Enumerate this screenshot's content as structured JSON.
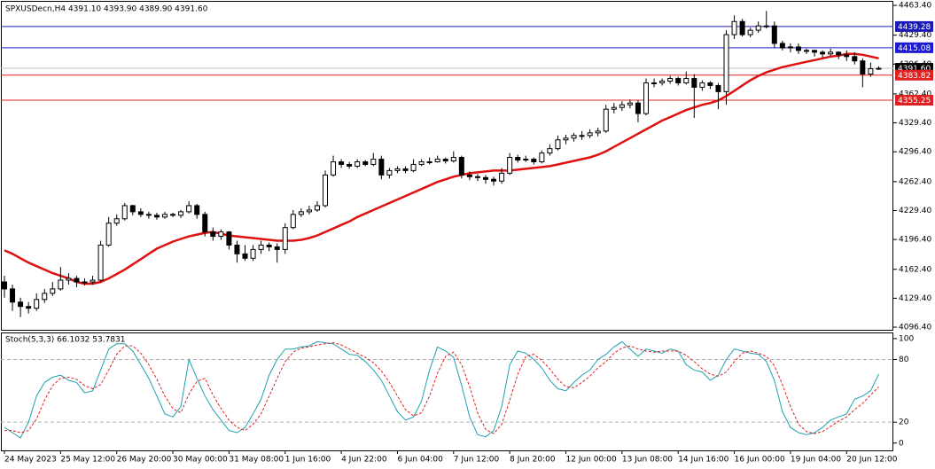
{
  "chart_data": [
    {
      "type": "candlestick",
      "title": "SPXUSDecn,H4  4391.10 4393.90 4389.90 4391.60",
      "ylim": [
        4093.4,
        4468.5
      ],
      "yticks": [
        {
          "value": 4463.4,
          "label": "4463.40"
        },
        {
          "value": 4429.4,
          "label": "4429.40"
        },
        {
          "value": 4396.4,
          "label": "4396.40"
        },
        {
          "value": 4362.4,
          "label": "4362.40"
        },
        {
          "value": 4329.4,
          "label": "4329.40"
        },
        {
          "value": 4296.4,
          "label": "4296.40"
        },
        {
          "value": 4262.4,
          "label": "4262.40"
        },
        {
          "value": 4229.4,
          "label": "4229.40"
        },
        {
          "value": 4196.4,
          "label": "4196.40"
        },
        {
          "value": 4162.4,
          "label": "4162.40"
        },
        {
          "value": 4129.4,
          "label": "4129.40"
        },
        {
          "value": 4096.4,
          "label": "4096.40"
        }
      ],
      "levels": [
        {
          "value": 4439.28,
          "label": "4439.28",
          "color": "#1a1ab8"
        },
        {
          "value": 4415.08,
          "label": "4415.08",
          "color": "#1a1ad0"
        },
        {
          "value": 4391.6,
          "label": "4391.60",
          "color": "#000000",
          "line_color": "#c0c0c0"
        },
        {
          "value": 4383.82,
          "label": "4383.82",
          "color": "#e02020"
        },
        {
          "value": 4355.25,
          "label": "4355.25",
          "color": "#e02020"
        }
      ],
      "categories": [
        "24 May 2023",
        null,
        null,
        null,
        null,
        null,
        null,
        "25 May 12:00",
        null,
        null,
        null,
        null,
        null,
        null,
        "26 May 20:00",
        null,
        null,
        null,
        null,
        null,
        null,
        "30 May 00:00",
        null,
        null,
        null,
        null,
        null,
        null,
        "31 May 08:00",
        null,
        null,
        null,
        null,
        null,
        null,
        "1 Jun 16:00",
        null,
        null,
        null,
        null,
        null,
        null,
        "4 Jun 22:00",
        null,
        null,
        null,
        null,
        null,
        null,
        "6 Jun 04:00",
        null,
        null,
        null,
        null,
        null,
        null,
        "7 Jun 12:00",
        null,
        null,
        null,
        null,
        null,
        null,
        "8 Jun 20:00",
        null,
        null,
        null,
        null,
        null,
        null,
        "12 Jun 00:00",
        null,
        null,
        null,
        null,
        null,
        null,
        "13 Jun 08:00",
        null,
        null,
        null,
        null,
        null,
        null,
        "14 Jun 16:00",
        null,
        null,
        null,
        null,
        null,
        null,
        "16 Jun 00:00",
        null,
        null,
        null,
        null,
        null,
        null,
        "19 Jun 04:00",
        null,
        null,
        null,
        null,
        null,
        null,
        "20 Jun 12:00",
        null,
        null,
        null,
        null
      ],
      "candles": [
        [
          4148,
          4155,
          4130,
          4140
        ],
        [
          4140,
          4145,
          4115,
          4125
        ],
        [
          4125,
          4130,
          4108,
          4120
        ],
        [
          4120,
          4125,
          4112,
          4118
        ],
        [
          4118,
          4135,
          4115,
          4128
        ],
        [
          4128,
          4140,
          4124,
          4135
        ],
        [
          4135,
          4148,
          4132,
          4140
        ],
        [
          4140,
          4165,
          4138,
          4150
        ],
        [
          4150,
          4158,
          4145,
          4152
        ],
        [
          4152,
          4155,
          4142,
          4148
        ],
        [
          4148,
          4152,
          4144,
          4148
        ],
        [
          4148,
          4155,
          4145,
          4150
        ],
        [
          4150,
          4195,
          4148,
          4190
        ],
        [
          4190,
          4222,
          4188,
          4215
        ],
        [
          4215,
          4225,
          4212,
          4220
        ],
        [
          4220,
          4238,
          4218,
          4235
        ],
        [
          4235,
          4236,
          4224,
          4228
        ],
        [
          4228,
          4232,
          4222,
          4225
        ],
        [
          4225,
          4228,
          4220,
          4224
        ],
        [
          4224,
          4227,
          4219,
          4222
        ],
        [
          4222,
          4228,
          4220,
          4225
        ],
        [
          4225,
          4227,
          4222,
          4224
        ],
        [
          4224,
          4230,
          4221,
          4228
        ],
        [
          4228,
          4240,
          4226,
          4235
        ],
        [
          4235,
          4237,
          4220,
          4225
        ],
        [
          4225,
          4228,
          4200,
          4205
        ],
        [
          4205,
          4210,
          4195,
          4200
        ],
        [
          4200,
          4208,
          4196,
          4205
        ],
        [
          4205,
          4206,
          4185,
          4190
        ],
        [
          4190,
          4195,
          4170,
          4180
        ],
        [
          4180,
          4190,
          4172,
          4175
        ],
        [
          4175,
          4190,
          4172,
          4185
        ],
        [
          4185,
          4195,
          4180,
          4190
        ],
        [
          4190,
          4193,
          4183,
          4188
        ],
        [
          4188,
          4192,
          4170,
          4185
        ],
        [
          4185,
          4215,
          4180,
          4210
        ],
        [
          4210,
          4230,
          4208,
          4225
        ],
        [
          4225,
          4232,
          4222,
          4228
        ],
        [
          4228,
          4235,
          4225,
          4230
        ],
        [
          4230,
          4240,
          4228,
          4235
        ],
        [
          4235,
          4275,
          4233,
          4270
        ],
        [
          4270,
          4292,
          4268,
          4285
        ],
        [
          4285,
          4288,
          4278,
          4282
        ],
        [
          4282,
          4285,
          4277,
          4280
        ],
        [
          4280,
          4288,
          4278,
          4285
        ],
        [
          4285,
          4287,
          4280,
          4282
        ],
        [
          4282,
          4295,
          4280,
          4288
        ],
        [
          4288,
          4292,
          4265,
          4270
        ],
        [
          4270,
          4278,
          4266,
          4275
        ],
        [
          4275,
          4280,
          4272,
          4277
        ],
        [
          4277,
          4280,
          4272,
          4275
        ],
        [
          4275,
          4288,
          4273,
          4282
        ],
        [
          4282,
          4288,
          4280,
          4285
        ],
        [
          4285,
          4290,
          4282,
          4285
        ],
        [
          4285,
          4292,
          4284,
          4288
        ],
        [
          4288,
          4290,
          4283,
          4286
        ],
        [
          4286,
          4297,
          4284,
          4290
        ],
        [
          4290,
          4292,
          4266,
          4270
        ],
        [
          4270,
          4274,
          4264,
          4268
        ],
        [
          4268,
          4271,
          4263,
          4267
        ],
        [
          4267,
          4270,
          4260,
          4265
        ],
        [
          4265,
          4268,
          4258,
          4263
        ],
        [
          4263,
          4278,
          4260,
          4272
        ],
        [
          4272,
          4295,
          4270,
          4290
        ],
        [
          4290,
          4293,
          4284,
          4287
        ],
        [
          4287,
          4292,
          4285,
          4288
        ],
        [
          4288,
          4290,
          4282,
          4285
        ],
        [
          4285,
          4298,
          4283,
          4295
        ],
        [
          4295,
          4305,
          4292,
          4300
        ],
        [
          4300,
          4315,
          4298,
          4310
        ],
        [
          4310,
          4316,
          4305,
          4312
        ],
        [
          4312,
          4318,
          4308,
          4315
        ],
        [
          4315,
          4320,
          4310,
          4315
        ],
        [
          4315,
          4322,
          4312,
          4318
        ],
        [
          4318,
          4324,
          4314,
          4320
        ],
        [
          4320,
          4350,
          4318,
          4345
        ],
        [
          4345,
          4352,
          4340,
          4347
        ],
        [
          4347,
          4354,
          4343,
          4350
        ],
        [
          4350,
          4356,
          4346,
          4352
        ],
        [
          4352,
          4355,
          4330,
          4340
        ],
        [
          4340,
          4380,
          4338,
          4375
        ],
        [
          4375,
          4380,
          4370,
          4375
        ],
        [
          4375,
          4380,
          4372,
          4377
        ],
        [
          4377,
          4383,
          4374,
          4380
        ],
        [
          4380,
          4382,
          4372,
          4375
        ],
        [
          4375,
          4388,
          4373,
          4380
        ],
        [
          4380,
          4385,
          4335,
          4370
        ],
        [
          4370,
          4378,
          4366,
          4375
        ],
        [
          4375,
          4377,
          4368,
          4372
        ],
        [
          4372,
          4375,
          4345,
          4365
        ],
        [
          4365,
          4435,
          4350,
          4430
        ],
        [
          4430,
          4452,
          4425,
          4445
        ],
        [
          4445,
          4448,
          4428,
          4430
        ],
        [
          4430,
          4438,
          4427,
          4435
        ],
        [
          4435,
          4445,
          4432,
          4440
        ],
        [
          4440,
          4457,
          4437,
          4440
        ],
        [
          4440,
          4445,
          4415,
          4420
        ],
        [
          4420,
          4423,
          4412,
          4415
        ],
        [
          4415,
          4420,
          4410,
          4416
        ],
        [
          4416,
          4420,
          4408,
          4412
        ],
        [
          4412,
          4414,
          4408,
          4412
        ],
        [
          4412,
          4413,
          4405,
          4410
        ],
        [
          4410,
          4412,
          4404,
          4408
        ],
        [
          4408,
          4414,
          4406,
          4410
        ],
        [
          4410,
          4411,
          4402,
          4407
        ],
        [
          4407,
          4412,
          4400,
          4405
        ],
        [
          4405,
          4410,
          4396,
          4400
        ],
        [
          4400,
          4403,
          4370,
          4385
        ],
        [
          4385,
          4398,
          4382,
          4391.1
        ],
        [
          4391.1,
          4393.9,
          4389.9,
          4391.6
        ]
      ],
      "bull_color": "#ffffff",
      "bear_color": "#000000",
      "series": [
        {
          "color": "#e01010",
          "values": [
            4184,
            4180,
            4175,
            4170,
            4166,
            4162,
            4158,
            4155,
            4152,
            4148,
            4146,
            4146,
            4148,
            4152,
            4157,
            4162,
            4168,
            4174,
            4180,
            4186,
            4190,
            4194,
            4197,
            4200,
            4202,
            4204,
            4205,
            4203,
            4201,
            4200,
            4199,
            4198,
            4197,
            4196,
            4195,
            4195,
            4195,
            4196,
            4198,
            4201,
            4205,
            4209,
            4213,
            4217,
            4222,
            4226,
            4230,
            4234,
            4238,
            4242,
            4246,
            4250,
            4254,
            4258,
            4262,
            4265,
            4268,
            4270,
            4272,
            4273,
            4274,
            4275,
            4275,
            4275,
            4276,
            4277,
            4278,
            4279,
            4280,
            4282,
            4284,
            4286,
            4288,
            4290,
            4293,
            4297,
            4302,
            4307,
            4312,
            4317,
            4322,
            4327,
            4332,
            4336,
            4340,
            4344,
            4347,
            4350,
            4352,
            4355,
            4360,
            4366,
            4372,
            4378,
            4383,
            4387,
            4390,
            4393,
            4395,
            4397,
            4399,
            4401,
            4403,
            4405,
            4406,
            4408,
            4408,
            4407,
            4405,
            4403
          ]
        }
      ]
    },
    {
      "type": "line",
      "title": "Stoch(5,3,3) 66.1032 53.7831",
      "ylim": [
        -7,
        105
      ],
      "yticks": [
        100,
        80,
        20,
        0
      ],
      "levels": [
        80,
        20
      ],
      "series": [
        {
          "color": "#20a0b0",
          "values": [
            15,
            10,
            5,
            20,
            45,
            58,
            63,
            65,
            60,
            58,
            48,
            50,
            70,
            90,
            95,
            95,
            88,
            75,
            62,
            45,
            28,
            25,
            35,
            80,
            62,
            45,
            32,
            22,
            12,
            10,
            15,
            28,
            42,
            65,
            80,
            90,
            90,
            92,
            93,
            97,
            96,
            95,
            90,
            85,
            84,
            78,
            70,
            60,
            45,
            30,
            22,
            25,
            40,
            70,
            92,
            88,
            82,
            55,
            25,
            8,
            6,
            12,
            35,
            75,
            88,
            86,
            80,
            72,
            60,
            52,
            50,
            58,
            65,
            70,
            80,
            85,
            92,
            97,
            90,
            83,
            90,
            88,
            86,
            90,
            88,
            75,
            70,
            68,
            60,
            65,
            80,
            90,
            88,
            86,
            85,
            78,
            60,
            30,
            15,
            10,
            8,
            10,
            15,
            22,
            25,
            28,
            42,
            45,
            50,
            66.1032
          ]
        },
        {
          "color": "#e02020",
          "dashed": true,
          "values": [
            12,
            12,
            10,
            12,
            23,
            41,
            55,
            62,
            63,
            61,
            55,
            52,
            56,
            70,
            85,
            93,
            93,
            86,
            75,
            61,
            45,
            33,
            29,
            47,
            59,
            62,
            46,
            33,
            22,
            15,
            12,
            18,
            28,
            45,
            62,
            78,
            87,
            91,
            92,
            94,
            95,
            96,
            94,
            90,
            86,
            82,
            77,
            69,
            58,
            45,
            32,
            26,
            29,
            45,
            67,
            83,
            87,
            75,
            54,
            29,
            13,
            9,
            18,
            41,
            66,
            83,
            85,
            79,
            71,
            61,
            54,
            53,
            58,
            64,
            72,
            78,
            86,
            91,
            93,
            90,
            88,
            87,
            88,
            88,
            88,
            84,
            78,
            71,
            66,
            64,
            68,
            78,
            86,
            88,
            86,
            83,
            74,
            56,
            35,
            18,
            11,
            9,
            11,
            16,
            21,
            25,
            32,
            38,
            46,
            53.7831
          ]
        }
      ]
    }
  ]
}
